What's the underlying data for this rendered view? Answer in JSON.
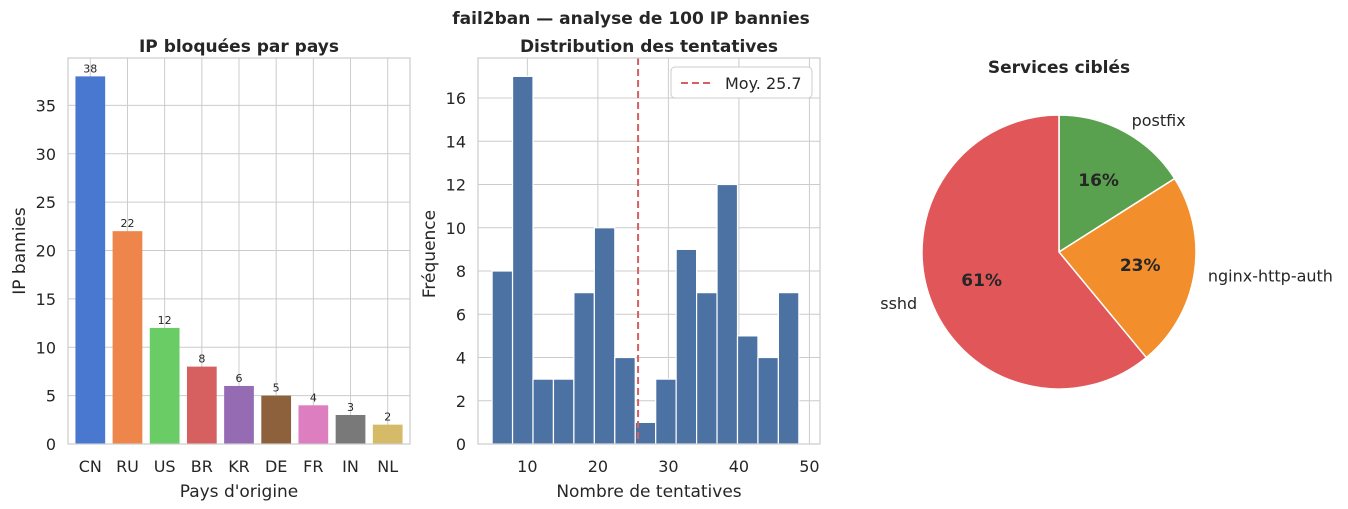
{
  "figure": {
    "suptitle": "fail2ban — analyse de 100 IP bannies"
  },
  "chart_data": [
    {
      "type": "bar",
      "title": "IP bloquées par pays",
      "xlabel": "Pays d'origine",
      "ylabel": "IP bannies",
      "categories": [
        "CN",
        "RU",
        "US",
        "BR",
        "KR",
        "DE",
        "FR",
        "IN",
        "NL"
      ],
      "values": [
        38,
        22,
        12,
        8,
        6,
        5,
        4,
        3,
        2
      ],
      "colors": [
        "#4878d0",
        "#ee854a",
        "#6acc64",
        "#d65f5f",
        "#956cb4",
        "#8c613c",
        "#dc7ec0",
        "#797979",
        "#d5bb67"
      ],
      "ylim": [
        0,
        39.9
      ],
      "yticks": [
        0,
        5,
        10,
        15,
        20,
        25,
        30,
        35
      ],
      "grid": true
    },
    {
      "type": "bar",
      "subtype": "histogram",
      "title": "Distribution des tentatives",
      "xlabel": "Nombre de tentatives",
      "ylabel": "Fréquence",
      "bin_edges": [
        5,
        7.9,
        10.8,
        13.7,
        16.6,
        19.5,
        22.4,
        25.3,
        28.2,
        31.1,
        34,
        36.9,
        39.8,
        42.7,
        45.6,
        48.5
      ],
      "bin_edges_last": 51.4,
      "counts": [
        8,
        17,
        3,
        3,
        7,
        10,
        4,
        1,
        3,
        9,
        7,
        12,
        5,
        4,
        7
      ],
      "color": "#4c72a4",
      "xlim": [
        3.0,
        51.5
      ],
      "ylim": [
        0,
        17.85
      ],
      "xticks": [
        10,
        20,
        30,
        40,
        50
      ],
      "yticks": [
        0,
        2,
        4,
        6,
        8,
        10,
        12,
        14,
        16
      ],
      "mean_line": {
        "value": 25.7,
        "label": "Moy. 25.7",
        "color": "#d65f5f"
      },
      "legend": "top-right",
      "grid": true
    },
    {
      "type": "pie",
      "title": "Services ciblés",
      "labels": [
        "postfix",
        "nginx-http-auth",
        "sshd"
      ],
      "values": [
        16,
        23,
        61
      ],
      "pct_labels": [
        "16%",
        "23%",
        "61%"
      ],
      "colors": [
        "#59a14f",
        "#f28e2b",
        "#e15759"
      ],
      "start_angle": 90,
      "direction": "clockwise"
    }
  ]
}
